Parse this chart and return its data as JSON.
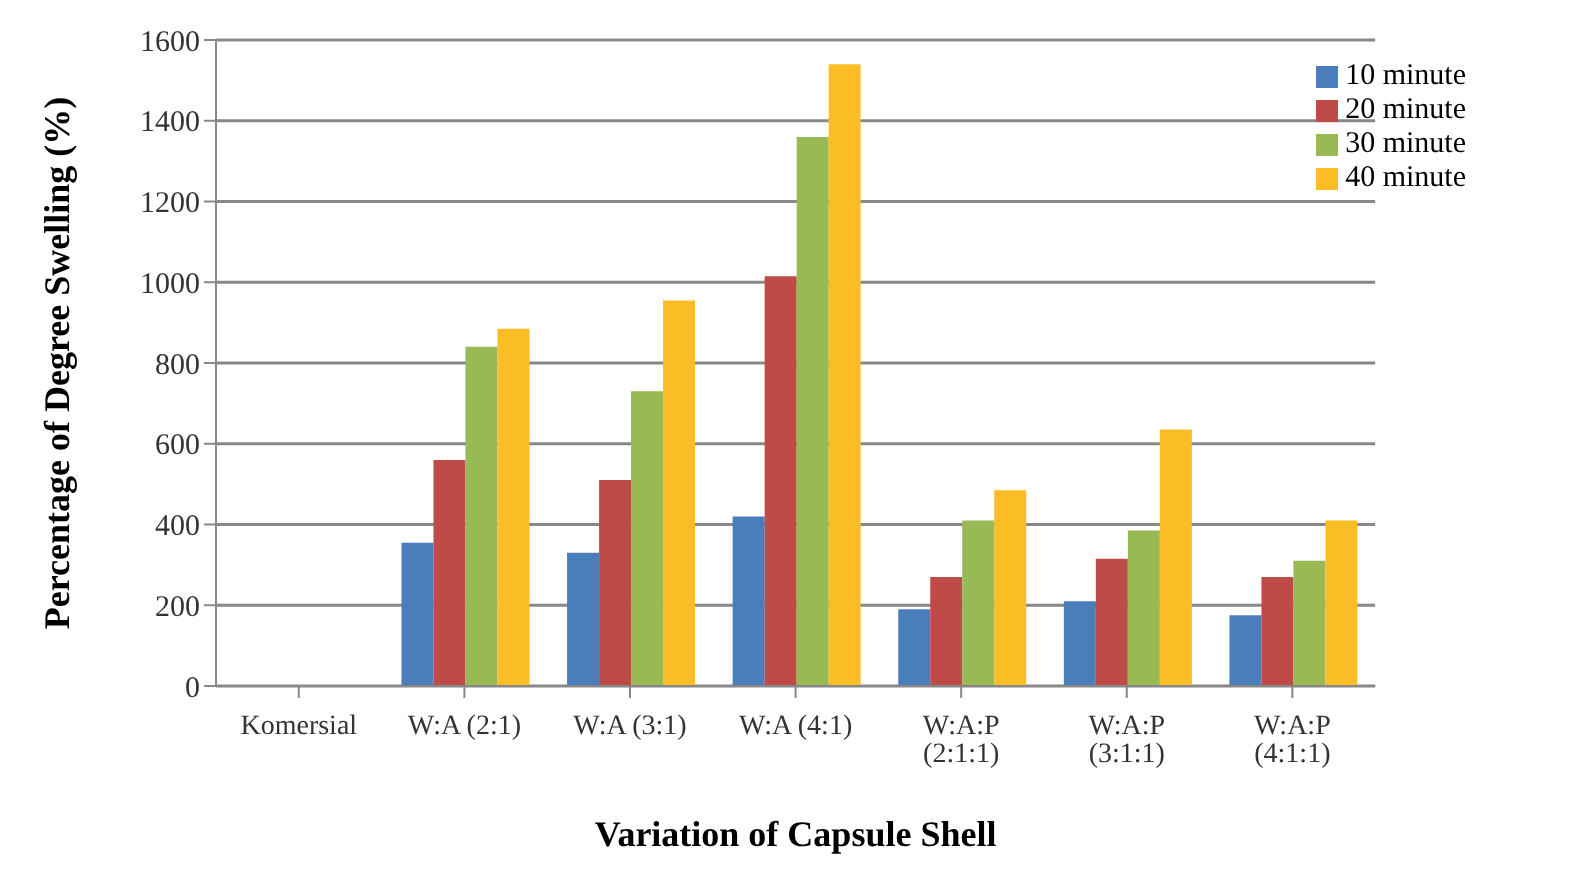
{
  "chart_data": {
    "type": "bar",
    "xlabel": "Variation of Capsule Shell",
    "ylabel": "Percentage of  Degree Swelling (%)",
    "categories": [
      "Komersial",
      "W:A (2:1)",
      "W:A (3:1)",
      "W:A (4:1)",
      "W:A:P (2:1:1)",
      "W:A:P (3:1:1)",
      "W:A:P (4:1:1)"
    ],
    "series": [
      {
        "name": "10 minute",
        "color": "#4a7ebb",
        "values": [
          null,
          355,
          330,
          420,
          190,
          210,
          175
        ]
      },
      {
        "name": "20 minute",
        "color": "#be4b48",
        "values": [
          null,
          560,
          510,
          1015,
          270,
          315,
          270
        ]
      },
      {
        "name": "30 minute",
        "color": "#98b954",
        "values": [
          null,
          840,
          730,
          1360,
          410,
          385,
          310
        ]
      },
      {
        "name": "40 minute",
        "color": "#fbbd25",
        "values": [
          null,
          885,
          955,
          1540,
          485,
          635,
          410
        ]
      }
    ],
    "ylim": [
      0,
      1600
    ],
    "yticks": [
      0,
      200,
      400,
      600,
      800,
      1000,
      1200,
      1400,
      1600
    ],
    "grid": "y",
    "legend": "top right"
  }
}
